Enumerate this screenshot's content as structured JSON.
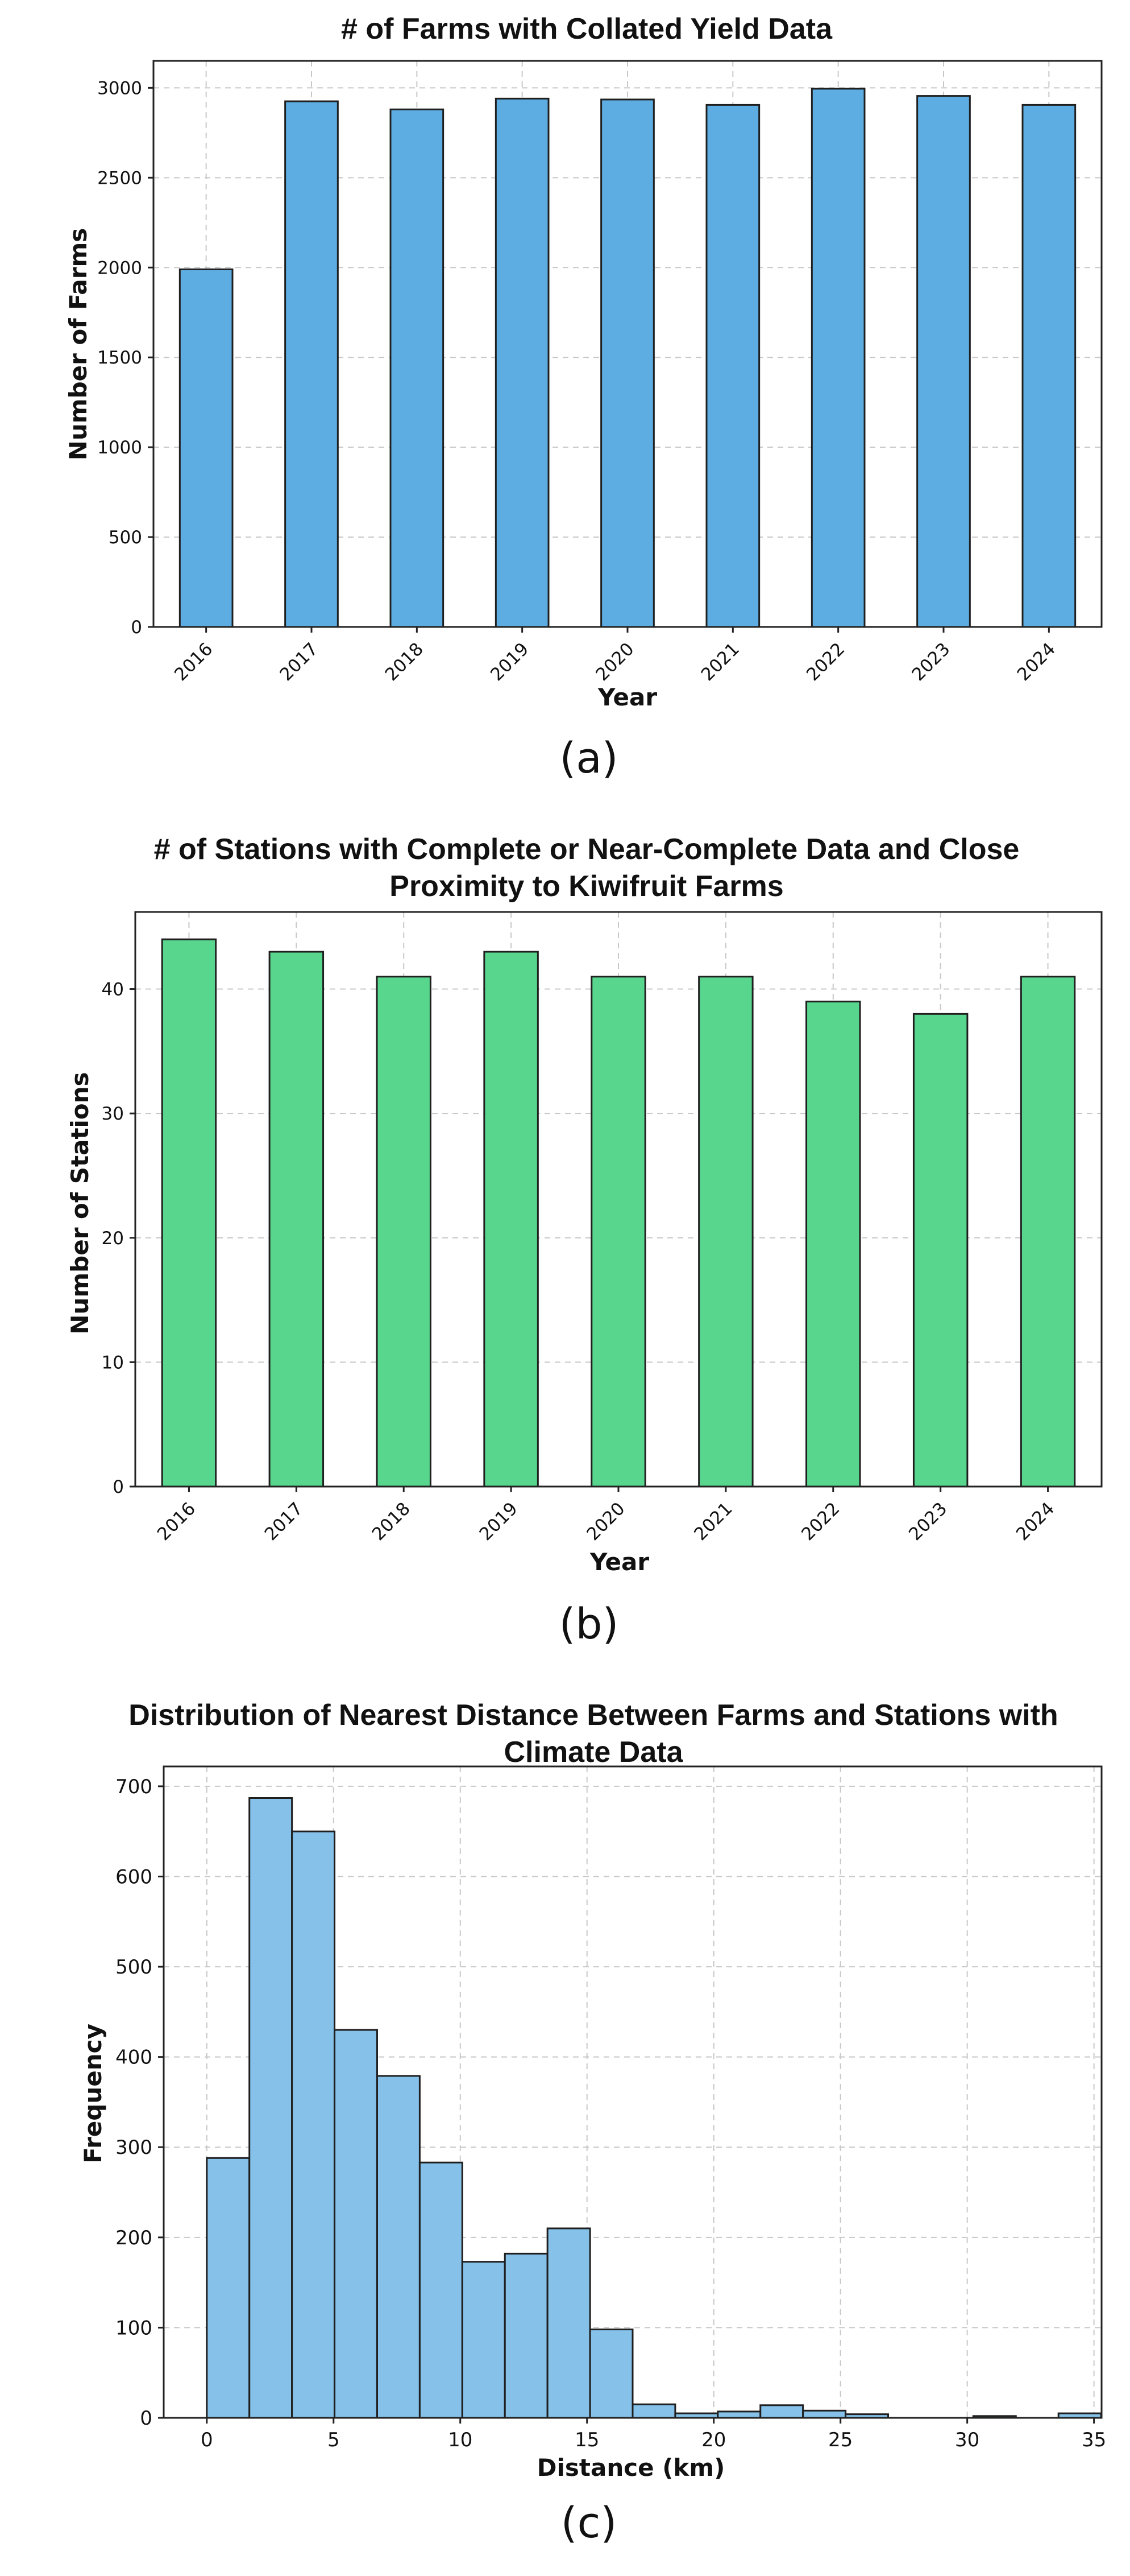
{
  "colors": {
    "farms": "#5dade2",
    "stations": "#58d68d",
    "distance": "#85c1e9"
  },
  "panels": [
    {
      "caption": "(a)"
    },
    {
      "caption": "(b)"
    },
    {
      "caption": "(c)"
    }
  ],
  "chart_data": [
    {
      "type": "bar",
      "title": "# of Farms with Collated Yield Data",
      "xlabel": "Year",
      "ylabel": "Number of Farms",
      "categories": [
        "2016",
        "2017",
        "2018",
        "2019",
        "2020",
        "2021",
        "2022",
        "2023",
        "2024"
      ],
      "values": [
        1990,
        2925,
        2880,
        2940,
        2935,
        2905,
        2995,
        2955,
        2905
      ],
      "ylim": [
        0,
        3150
      ],
      "yticks": [
        0,
        500,
        1000,
        1500,
        2000,
        2500,
        3000
      ],
      "grid": true
    },
    {
      "type": "bar",
      "title": "# of Stations with Complete or Near-Complete Data and Close Proximity to Kiwifruit Farms",
      "title_lines": [
        "# of Stations with Complete or Near-Complete Data and Close",
        "Proximity to Kiwifruit Farms"
      ],
      "xlabel": "Year",
      "ylabel": "Number of Stations",
      "categories": [
        "2016",
        "2017",
        "2018",
        "2019",
        "2020",
        "2021",
        "2022",
        "2023",
        "2024"
      ],
      "values": [
        44,
        43,
        41,
        43,
        41,
        41,
        39,
        38,
        41
      ],
      "ylim": [
        0,
        46.2
      ],
      "yticks": [
        0,
        10,
        20,
        30,
        40
      ],
      "grid": true
    },
    {
      "type": "bar",
      "subtype": "histogram",
      "title": "Distribution of Nearest Distance Between Farms and Stations with Climate Data",
      "title_lines": [
        "Distribution of Nearest Distance Between Farms and Stations with",
        "Climate Data"
      ],
      "xlabel": "Distance (km)",
      "ylabel": "Frequency",
      "bin_start": 0,
      "bin_width": 1.68,
      "values": [
        288,
        687,
        650,
        430,
        379,
        283,
        173,
        182,
        210,
        98,
        15,
        5,
        7,
        14,
        8,
        4,
        0,
        0,
        2,
        0,
        5
      ],
      "xlim": [
        -1.7,
        35.3
      ],
      "ylim": [
        0,
        722
      ],
      "xticks": [
        0,
        5,
        10,
        15,
        20,
        25,
        30,
        35
      ],
      "yticks": [
        0,
        100,
        200,
        300,
        400,
        500,
        600,
        700
      ],
      "grid": true
    }
  ]
}
